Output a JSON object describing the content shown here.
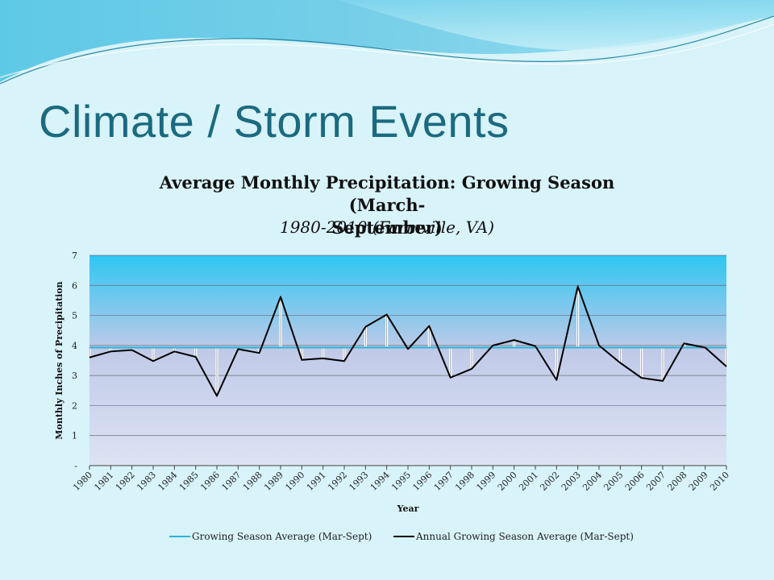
{
  "slide": {
    "title": "Climate / Storm Events"
  },
  "chart_data": {
    "type": "line",
    "title": "Average Monthly Precipitation: Growing Season (March-September)",
    "title_line1": "Average Monthly Precipitation: Growing Season (March-",
    "title_line2": "September)",
    "subtitle": "1980-2010 (Farmville, VA)",
    "xlabel": "Year",
    "ylabel": "Monthly Inches of Precipitation",
    "ylim": [
      0,
      7
    ],
    "y_ticks": [
      "-",
      "1",
      "2",
      "3",
      "4",
      "5",
      "6",
      "7"
    ],
    "grid": true,
    "legend_position": "bottom",
    "colors": {
      "average_line": "#2bb4d6",
      "annual_line": "#000000",
      "plot_top": "#2ec6f2",
      "plot_mid": "#c0cae8",
      "plot_bottom": "#dde3f3",
      "drop_line": "#999999"
    },
    "x": [
      "1980",
      "1981",
      "1982",
      "1983",
      "1984",
      "1985",
      "1986",
      "1987",
      "1988",
      "1989",
      "1990",
      "1991",
      "1992",
      "1993",
      "1994",
      "1995",
      "1996",
      "1997",
      "1998",
      "1999",
      "2000",
      "2001",
      "2002",
      "2003",
      "2004",
      "2005",
      "2006",
      "2007",
      "2008",
      "2009",
      "2010"
    ],
    "series": [
      {
        "name": "Growing Season Average (Mar-Sept)",
        "values": [
          3.93,
          3.93,
          3.93,
          3.93,
          3.93,
          3.93,
          3.93,
          3.93,
          3.93,
          3.93,
          3.93,
          3.93,
          3.93,
          3.93,
          3.93,
          3.93,
          3.93,
          3.93,
          3.93,
          3.93,
          3.93,
          3.93,
          3.93,
          3.93,
          3.93,
          3.93,
          3.93,
          3.93,
          3.93,
          3.93,
          3.93
        ]
      },
      {
        "name": "Annual Growing Season Average (Mar-Sept)",
        "values": [
          3.6,
          3.8,
          3.85,
          3.48,
          3.8,
          3.62,
          2.32,
          3.88,
          3.75,
          5.62,
          3.52,
          3.57,
          3.48,
          4.62,
          5.03,
          3.88,
          4.65,
          2.93,
          3.22,
          4.0,
          4.18,
          3.98,
          2.85,
          5.97,
          4.0,
          3.42,
          2.92,
          2.82,
          4.07,
          3.93,
          3.3
        ]
      }
    ]
  }
}
